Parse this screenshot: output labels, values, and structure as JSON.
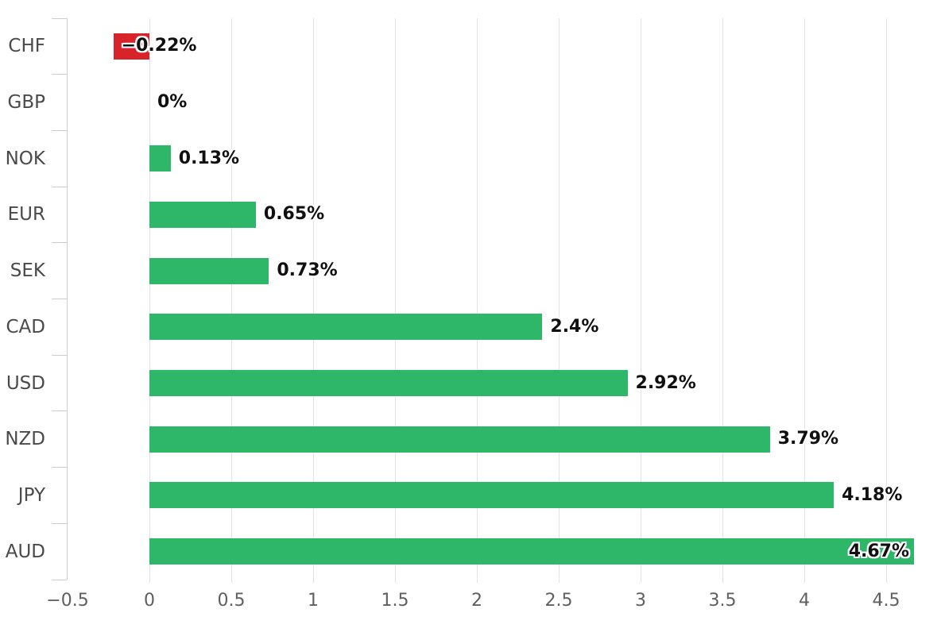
{
  "chart_data": {
    "type": "bar",
    "orientation": "horizontal",
    "title": "",
    "xlabel": "",
    "ylabel": "",
    "categories": [
      "CHF",
      "GBP",
      "NOK",
      "EUR",
      "SEK",
      "CAD",
      "USD",
      "NZD",
      "JPY",
      "AUD"
    ],
    "values": [
      -0.22,
      0,
      0.13,
      0.65,
      0.73,
      2.4,
      2.92,
      3.79,
      4.18,
      4.67
    ],
    "value_labels": [
      "−0.22%",
      "0%",
      "0.13%",
      "0.65%",
      "0.73%",
      "2.4%",
      "2.92%",
      "3.79%",
      "4.18%",
      "4.67%"
    ],
    "x_ticks": [
      -0.5,
      0,
      0.5,
      1,
      1.5,
      2,
      2.5,
      3,
      3.5,
      4,
      4.5
    ],
    "x_tick_labels": [
      "−0.5",
      "0",
      "0.5",
      "1",
      "1.5",
      "2",
      "2.5",
      "3",
      "3.5",
      "4",
      "4.5"
    ],
    "xlim": [
      -0.5,
      4.72
    ],
    "grid": true,
    "legend": "none",
    "colors": {
      "positive_bar": "#2eb669",
      "negative_bar": "#d8232a",
      "gridline": "#e3e3e3",
      "axis": "#cccccc",
      "category_label": "#4a4a4a",
      "tick_label": "#5f5f5f",
      "value_label": "#101010"
    }
  }
}
